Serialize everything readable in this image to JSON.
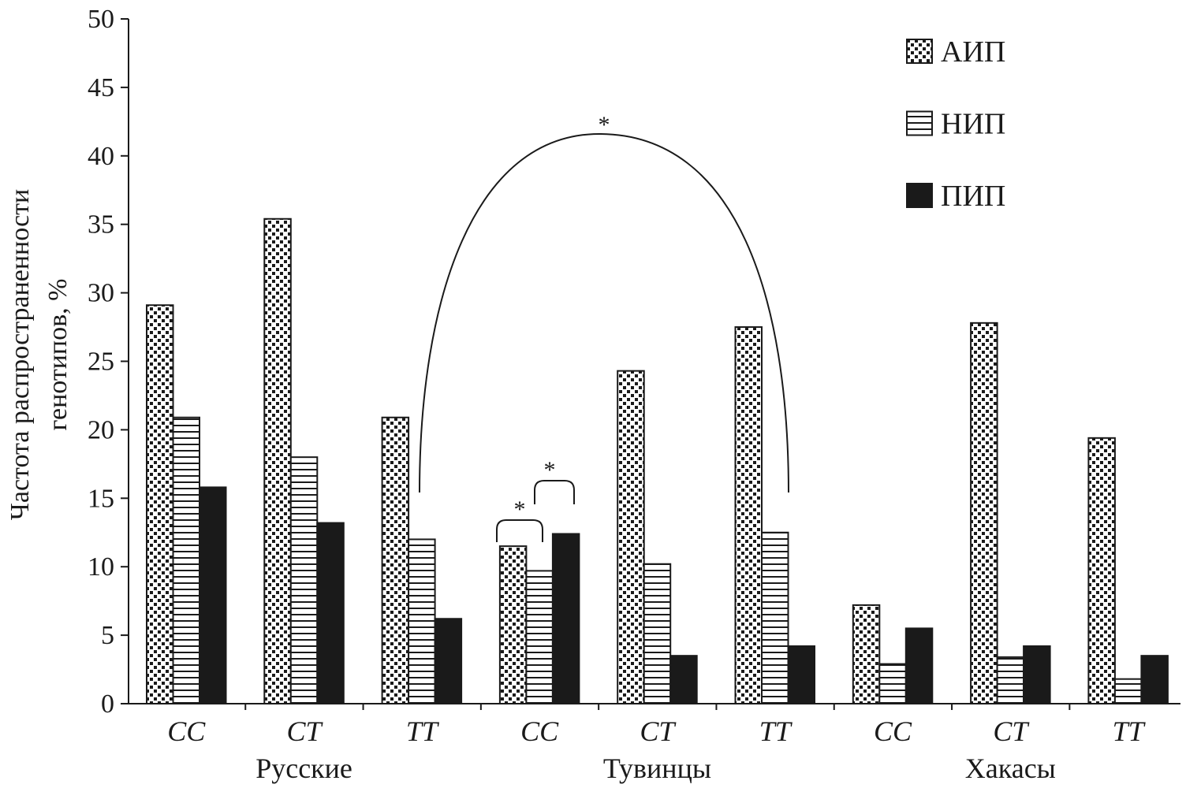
{
  "chart_data": {
    "type": "bar",
    "ylabel_lines": [
      "Частота распространенности",
      "генотипов, %"
    ],
    "ylim": [
      0,
      50
    ],
    "yticks": [
      "0",
      "5",
      "10",
      "15",
      "20",
      "25",
      "30",
      "35",
      "40",
      "45",
      "50"
    ],
    "groups": [
      {
        "label": "Русские",
        "categories": [
          "CC",
          "CT",
          "TT"
        ]
      },
      {
        "label": "Тувинцы",
        "categories": [
          "CC",
          "CT",
          "TT"
        ]
      },
      {
        "label": "Хакасы",
        "categories": [
          "CC",
          "CT",
          "TT"
        ]
      }
    ],
    "series": [
      {
        "name": "АИП",
        "pattern": "dotted",
        "values": [
          29.1,
          35.4,
          20.9,
          11.5,
          24.3,
          27.5,
          7.2,
          27.8,
          19.4
        ]
      },
      {
        "name": "НИП",
        "pattern": "horizontal-lines",
        "values": [
          20.9,
          18.0,
          12.0,
          9.7,
          10.2,
          12.5,
          2.9,
          3.4,
          1.8
        ]
      },
      {
        "name": "ПИП",
        "pattern": "solid",
        "values": [
          15.8,
          13.2,
          6.2,
          12.4,
          3.5,
          4.2,
          5.5,
          4.2,
          3.5
        ]
      }
    ],
    "legend_position": "top-right",
    "grid": false,
    "annotations": [
      {
        "text": "*",
        "between": "Тувинцы CC АИП – Тувинцы TT ПИП"
      },
      {
        "text": "*",
        "between": "Тувинцы CC АИП – Тувинцы CC НИП"
      },
      {
        "text": "*",
        "between": "Тувинцы CC НИП – Тувинцы CC ПИП"
      }
    ],
    "colors": {
      "ink": "#1a1a1a",
      "background": "#ffffff"
    }
  }
}
